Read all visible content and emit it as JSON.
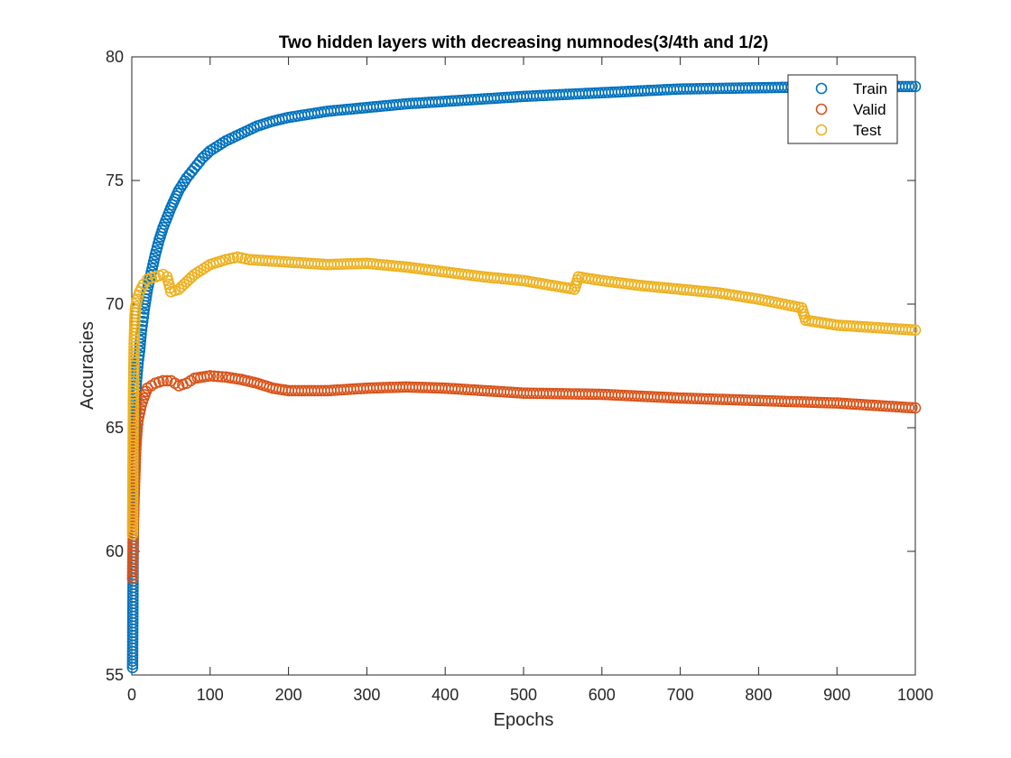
{
  "chart_data": {
    "type": "scatter",
    "title": "Two hidden layers with decreasing numnodes(3/4th and 1/2)",
    "xlabel": "Epochs",
    "ylabel": "Accuracies",
    "xlim": [
      0,
      1000
    ],
    "ylim": [
      55,
      80
    ],
    "xticks": [
      "0",
      "100",
      "200",
      "300",
      "400",
      "500",
      "600",
      "700",
      "800",
      "900",
      "1000"
    ],
    "yticks": [
      "55",
      "60",
      "65",
      "70",
      "75",
      "80"
    ],
    "grid": false,
    "box": true,
    "marker": "open-circle",
    "legend_position": "top-right",
    "series": [
      {
        "name": "Train",
        "color": "#0072BD",
        "points": [
          [
            1,
            55.3
          ],
          [
            2,
            61.0
          ],
          [
            3,
            63.1
          ],
          [
            4,
            64.6
          ],
          [
            5,
            65.9
          ],
          [
            6,
            66.9
          ],
          [
            8,
            67.6
          ],
          [
            10,
            68.1
          ],
          [
            12,
            68.8
          ],
          [
            14,
            69.3
          ],
          [
            16,
            69.8
          ],
          [
            18,
            70.2
          ],
          [
            20,
            70.6
          ],
          [
            25,
            71.3
          ],
          [
            30,
            72.0
          ],
          [
            35,
            72.6
          ],
          [
            40,
            73.1
          ],
          [
            50,
            73.9
          ],
          [
            60,
            74.6
          ],
          [
            70,
            75.1
          ],
          [
            80,
            75.5
          ],
          [
            90,
            75.9
          ],
          [
            100,
            76.2
          ],
          [
            120,
            76.6
          ],
          [
            140,
            76.9
          ],
          [
            160,
            77.2
          ],
          [
            180,
            77.4
          ],
          [
            200,
            77.55
          ],
          [
            250,
            77.8
          ],
          [
            300,
            77.95
          ],
          [
            350,
            78.1
          ],
          [
            400,
            78.2
          ],
          [
            500,
            78.4
          ],
          [
            600,
            78.55
          ],
          [
            700,
            78.7
          ],
          [
            800,
            78.75
          ],
          [
            900,
            78.8
          ],
          [
            1000,
            78.8
          ]
        ]
      },
      {
        "name": "Valid",
        "color": "#D95319",
        "points": [
          [
            1,
            58.9
          ],
          [
            2,
            61.0
          ],
          [
            3,
            62.1
          ],
          [
            4,
            63.1
          ],
          [
            5,
            64.0
          ],
          [
            6,
            64.6
          ],
          [
            7,
            65.0
          ],
          [
            8,
            65.3
          ],
          [
            10,
            65.6
          ],
          [
            12,
            65.9
          ],
          [
            15,
            66.2
          ],
          [
            20,
            66.6
          ],
          [
            30,
            66.8
          ],
          [
            40,
            66.9
          ],
          [
            50,
            66.9
          ],
          [
            60,
            66.7
          ],
          [
            70,
            66.8
          ],
          [
            80,
            67.0
          ],
          [
            100,
            67.1
          ],
          [
            120,
            67.05
          ],
          [
            140,
            66.95
          ],
          [
            160,
            66.8
          ],
          [
            180,
            66.6
          ],
          [
            200,
            66.5
          ],
          [
            250,
            66.5
          ],
          [
            300,
            66.6
          ],
          [
            350,
            66.65
          ],
          [
            400,
            66.6
          ],
          [
            500,
            66.4
          ],
          [
            600,
            66.35
          ],
          [
            700,
            66.2
          ],
          [
            800,
            66.1
          ],
          [
            900,
            66.0
          ],
          [
            1000,
            65.8
          ]
        ]
      },
      {
        "name": "Test",
        "color": "#EDB120",
        "points": [
          [
            1,
            60.7
          ],
          [
            2,
            66.1
          ],
          [
            3,
            68.4
          ],
          [
            4,
            69.5
          ],
          [
            5,
            69.9
          ],
          [
            7,
            70.2
          ],
          [
            10,
            70.5
          ],
          [
            15,
            70.8
          ],
          [
            20,
            71.0
          ],
          [
            30,
            71.1
          ],
          [
            40,
            71.2
          ],
          [
            45,
            71.1
          ],
          [
            50,
            70.5
          ],
          [
            60,
            70.6
          ],
          [
            70,
            70.9
          ],
          [
            80,
            71.2
          ],
          [
            100,
            71.6
          ],
          [
            120,
            71.8
          ],
          [
            135,
            71.9
          ],
          [
            150,
            71.8
          ],
          [
            200,
            71.7
          ],
          [
            250,
            71.6
          ],
          [
            300,
            71.65
          ],
          [
            350,
            71.5
          ],
          [
            400,
            71.3
          ],
          [
            450,
            71.1
          ],
          [
            500,
            70.95
          ],
          [
            565,
            70.6
          ],
          [
            570,
            71.1
          ],
          [
            600,
            70.95
          ],
          [
            650,
            70.75
          ],
          [
            700,
            70.6
          ],
          [
            750,
            70.45
          ],
          [
            800,
            70.2
          ],
          [
            855,
            69.85
          ],
          [
            860,
            69.35
          ],
          [
            900,
            69.15
          ],
          [
            950,
            69.05
          ],
          [
            1000,
            68.95
          ]
        ]
      }
    ]
  }
}
